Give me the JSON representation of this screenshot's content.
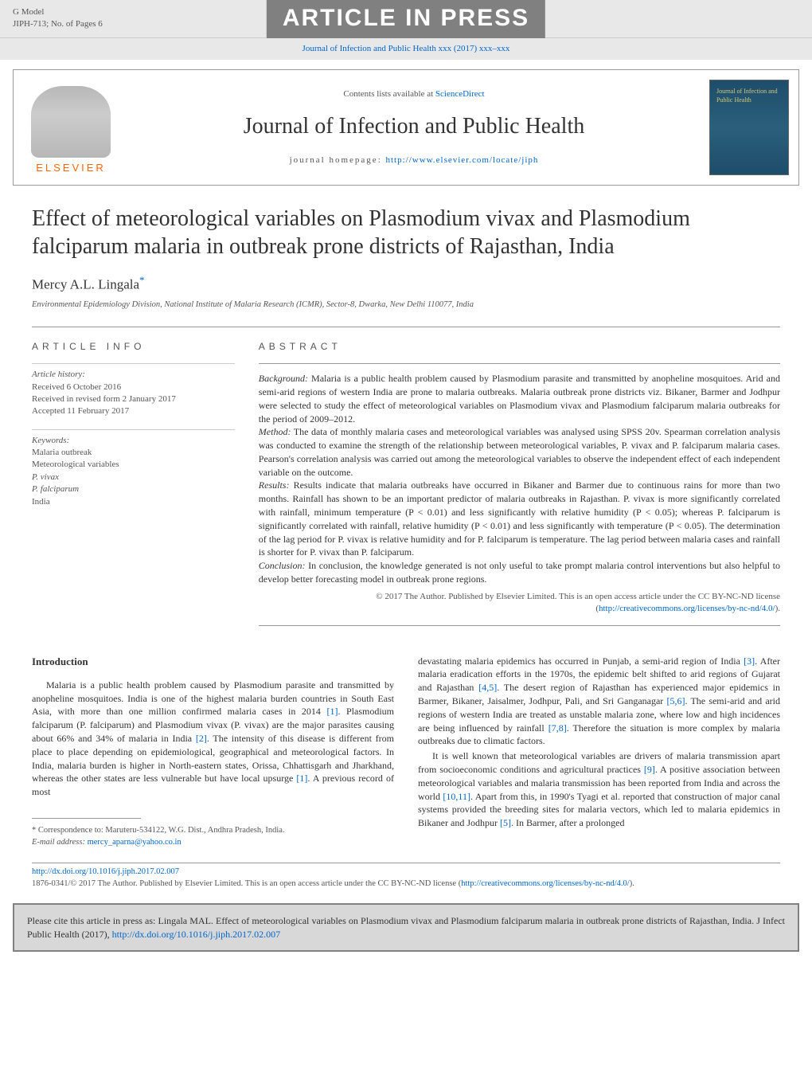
{
  "header": {
    "g_model": "G Model",
    "model_code": "JIPH-713;   No. of Pages 6",
    "banner": "ARTICLE IN PRESS",
    "journal_link": "Journal of Infection and Public Health xxx (2017) xxx–xxx"
  },
  "journal_header": {
    "contents_text": "Contents lists available at ",
    "contents_link": "ScienceDirect",
    "journal_title": "Journal of Infection and Public Health",
    "homepage_label": "journal homepage: ",
    "homepage_url": "http://www.elsevier.com/locate/jiph",
    "elsevier_label": "ELSEVIER",
    "cover_text": "Journal of Infection and Public Health"
  },
  "article": {
    "title": "Effect of meteorological variables on Plasmodium vivax and Plasmodium falciparum malaria in outbreak prone districts of Rajasthan, India",
    "author": "Mercy A.L. Lingala",
    "author_marker": "*",
    "affiliation": "Environmental Epidemiology Division, National Institute of Malaria Research (ICMR), Sector-8, Dwarka, New Delhi 110077, India"
  },
  "article_info": {
    "label": "ARTICLE INFO",
    "history_head": "Article history:",
    "received": "Received 6 October 2016",
    "revised": "Received in revised form 2 January 2017",
    "accepted": "Accepted 11 February 2017",
    "keywords_head": "Keywords:",
    "keywords": [
      "Malaria outbreak",
      "Meteorological variables",
      "P. vivax",
      "P. falciparum",
      "India"
    ]
  },
  "abstract": {
    "label": "ABSTRACT",
    "background_label": "Background:",
    "background": " Malaria is a public health problem caused by Plasmodium parasite and transmitted by anopheline mosquitoes. Arid and semi-arid regions of western India are prone to malaria outbreaks. Malaria outbreak prone districts viz. Bikaner, Barmer and Jodhpur were selected to study the effect of meteorological variables on Plasmodium vivax and Plasmodium falciparum malaria outbreaks for the period of 2009–2012.",
    "method_label": "Method:",
    "method": " The data of monthly malaria cases and meteorological variables was analysed using SPSS 20v. Spearman correlation analysis was conducted to examine the strength of the relationship between meteorological variables, P. vivax and P. falciparum malaria cases. Pearson's correlation analysis was carried out among the meteorological variables to observe the independent effect of each independent variable on the outcome.",
    "results_label": "Results:",
    "results": " Results indicate that malaria outbreaks have occurred in Bikaner and Barmer due to continuous rains for more than two months. Rainfall has shown to be an important predictor of malaria outbreaks in Rajasthan. P. vivax is more significantly correlated with rainfall, minimum temperature (P < 0.01) and less significantly with relative humidity (P < 0.05); whereas P. falciparum is significantly correlated with rainfall, relative humidity (P < 0.01) and less significantly with temperature (P < 0.05). The determination of the lag period for P. vivax is relative humidity and for P. falciparum is temperature. The lag period between malaria cases and rainfall is shorter for P. vivax than P. falciparum.",
    "conclusion_label": "Conclusion:",
    "conclusion": " In conclusion, the knowledge generated is not only useful to take prompt malaria control interventions but also helpful to develop better forecasting model in outbreak prone regions.",
    "copyright": "© 2017 The Author. Published by Elsevier Limited. This is an open access article under the CC BY-NC-ND license (",
    "license_url": "http://creativecommons.org/licenses/by-nc-nd/4.0/",
    "copyright_close": ")."
  },
  "body": {
    "intro_heading": "Introduction",
    "intro_p1_a": "Malaria is a public health problem caused by Plasmodium parasite and transmitted by anopheline mosquitoes. India is one of the highest malaria burden countries in South East Asia, with more than one million confirmed malaria cases in 2014 ",
    "ref1": "[1]",
    "intro_p1_b": ". Plasmodium falciparum (P. falciparum) and Plasmodium vivax (P. vivax) are the major parasites causing about 66% and 34% of malaria in India ",
    "ref2": "[2]",
    "intro_p1_c": ". The intensity of this disease is different from place to place depending on epidemiological, geographical and meteorological factors. In India, malaria burden is higher in North-eastern states, Orissa, Chhattisgarh and Jharkhand, whereas the other states are less vulnerable but have local upsurge ",
    "ref1b": "[1]",
    "intro_p1_d": ". A previous record of most",
    "col2_p1_a": "devastating malaria epidemics has occurred in Punjab, a semi-arid region of India ",
    "ref3": "[3]",
    "col2_p1_b": ". After malaria eradication efforts in the 1970s, the epidemic belt shifted to arid regions of Gujarat and Rajasthan ",
    "ref45": "[4,5]",
    "col2_p1_c": ". The desert region of Rajasthan has experienced major epidemics in Barmer, Bikaner, Jaisalmer, Jodhpur, Pali, and Sri Ganganagar ",
    "ref56": "[5,6]",
    "col2_p1_d": ". The semi-arid and arid regions of western India are treated as unstable malaria zone, where low and high incidences are being influenced by rainfall ",
    "ref78": "[7,8]",
    "col2_p1_e": ". Therefore the situation is more complex by malaria outbreaks due to climatic factors.",
    "col2_p2_a": "It is well known that meteorological variables are drivers of malaria transmission apart from socioeconomic conditions and agricultural practices ",
    "ref9": "[9]",
    "col2_p2_b": ". A positive association between meteorological variables and malaria transmission has been reported from India and across the world ",
    "ref1011": "[10,11]",
    "col2_p2_c": ". Apart from this, in 1990's Tyagi et al. reported that construction of major canal systems provided the breeding sites for malaria vectors, which led to malaria epidemics in Bikaner and Jodhpur ",
    "ref5": "[5]",
    "col2_p2_d": ". In Barmer, after a prolonged"
  },
  "footnotes": {
    "correspondence": "* Correspondence to: Maruteru-534122, W.G. Dist., Andhra Pradesh, India.",
    "email_label": "E-mail address: ",
    "email": "mercy_aparna@yahoo.co.in",
    "doi": "http://dx.doi.org/10.1016/j.jiph.2017.02.007",
    "license_prefix": "1876-0341/© 2017 The Author. Published by Elsevier Limited. This is an open access article under the CC BY-NC-ND license (",
    "license_url": "http://creativecommons.org/licenses/by-nc-nd/4.0/",
    "license_suffix": ")."
  },
  "citation_box": {
    "text_a": "Please cite this article in press as: Lingala MAL. Effect of meteorological variables on Plasmodium vivax and Plasmodium falciparum malaria in outbreak prone districts of Rajasthan, India. J Infect Public Health (2017), ",
    "url": "http://dx.doi.org/10.1016/j.jiph.2017.02.007"
  },
  "colors": {
    "link": "#0066cc",
    "banner_bg": "#808080",
    "banner_text": "#ffffff",
    "header_bg": "#e8e8e8",
    "elsevier_orange": "#ff6600",
    "cover_bg": "#1e4d6b",
    "cover_text": "#d4c878",
    "citation_bg": "#d8d8d8",
    "text_primary": "#333333",
    "text_secondary": "#555555",
    "border": "#999999"
  }
}
